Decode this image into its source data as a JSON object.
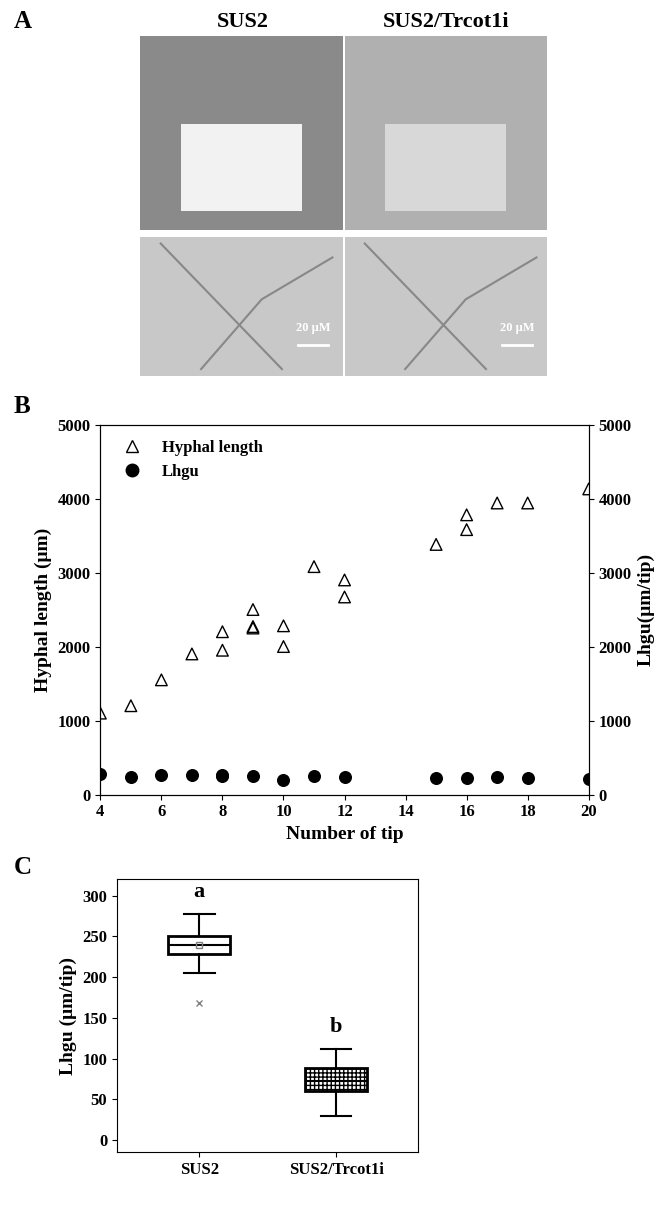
{
  "images": {
    "panel_label": "A",
    "labels": [
      "SUS2",
      "SUS2/Trcot1i"
    ],
    "scale_bar": "20 μM"
  },
  "chart_data": [
    {
      "type": "scatter",
      "panel_label": "B",
      "x_label": "Number of tip",
      "y_label": "Hyphal length (μm)",
      "y2_label": "Lhgu(μm/tip)",
      "xlim": [
        4,
        20
      ],
      "xticks": [
        4,
        6,
        8,
        10,
        12,
        14,
        16,
        18,
        20
      ],
      "ylim": [
        0,
        5000
      ],
      "yticks": [
        0,
        1000,
        2000,
        3000,
        4000,
        5000
      ],
      "y2lim": [
        0,
        5000
      ],
      "y2ticks": [
        0,
        1000,
        2000,
        3000,
        4000,
        5000
      ],
      "legend": "upper left",
      "series": [
        {
          "name": "Hyphal length",
          "color": "#000000",
          "marker": "open_triangle",
          "axis": "y",
          "x": [
            4,
            5,
            6,
            7,
            8,
            8,
            9,
            9,
            9,
            10,
            10,
            11,
            12,
            12,
            15,
            16,
            16,
            17,
            18,
            20
          ],
          "values": [
            1100,
            1200,
            1550,
            1900,
            1950,
            2200,
            2250,
            2500,
            2270,
            2000,
            2280,
            3080,
            2900,
            2670,
            3380,
            3580,
            3780,
            3940,
            3940,
            4130
          ]
        },
        {
          "name": "Lhgu",
          "color": "#000000",
          "marker": "circle",
          "axis": "y2",
          "x": [
            4,
            5,
            6,
            7,
            8,
            8,
            9,
            10,
            11,
            12,
            15,
            16,
            17,
            18,
            20
          ],
          "values": [
            275,
            240,
            258,
            270,
            245,
            270,
            250,
            200,
            245,
            240,
            225,
            225,
            230,
            220,
            205
          ]
        }
      ]
    },
    {
      "type": "box",
      "panel_label": "C",
      "y_label": "Lhgu (μm/tip)",
      "categories": [
        "SUS2",
        "SUS2/Trcot1i"
      ],
      "ylim": [
        -15,
        320
      ],
      "yticks": [
        0,
        50,
        100,
        150,
        200,
        250,
        300
      ],
      "boxes": [
        {
          "whisker_low": 205,
          "q1": 228,
          "median": 240,
          "q3": 250,
          "whisker_high": 277,
          "mean": 240,
          "outliers": [
            168
          ]
        },
        {
          "whisker_low": 30,
          "q1": 60,
          "median": 72,
          "q3": 88,
          "whisker_high": 112,
          "mean": null,
          "outliers": []
        }
      ],
      "annotations": [
        {
          "text": "a",
          "x": "SUS2",
          "y": 292
        },
        {
          "text": "b",
          "x": "SUS2/Trcot1i",
          "y": 127
        }
      ]
    }
  ]
}
